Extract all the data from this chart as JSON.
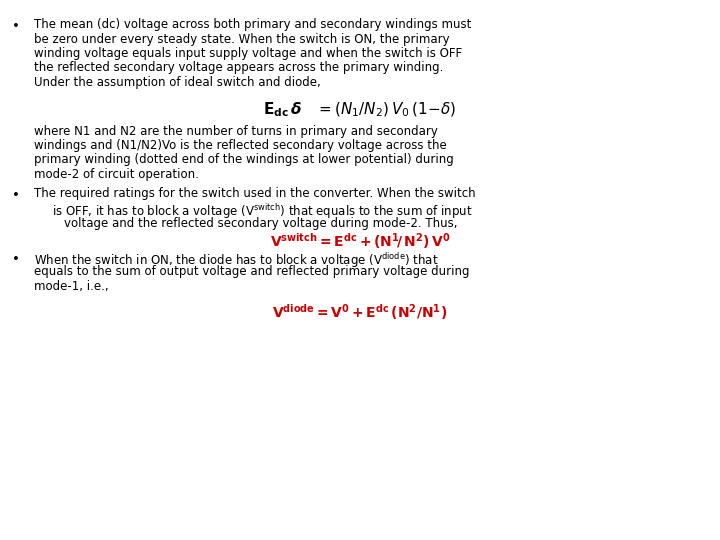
{
  "background_color": "#ffffff",
  "text_color": "#000000",
  "red_color": "#cc0000",
  "body_fontsize": 8.5,
  "formula1_fontsize": 11,
  "formula2_fontsize": 10,
  "bullet1_lines": [
    "The mean (dc) voltage across both primary and secondary windings must",
    "be zero under every steady state. When the switch is ON, the primary",
    "winding voltage equals input supply voltage and when the switch is OFF",
    "the reflected secondary voltage appears across the primary winding.",
    "Under the assumption of ideal switch and diode,"
  ],
  "after_formula1_lines": [
    "where N1 and N2 are the number of turns in primary and secondary",
    "windings and (N1/N2)Vo is the reflected secondary voltage across the",
    "primary winding (dotted end of the windings at lower potential) during",
    "mode-2 of circuit operation."
  ],
  "bullet2_line0": "The required ratings for the switch used in the converter. When the switch",
  "bullet2_line1": "is OFF, it has to block a voltage (V",
  "bullet2_line1b": "switch",
  "bullet2_line1c": ") that equals to the sum of input",
  "bullet2_line2": "voltage and the reflected secondary voltage during mode-2. Thus,",
  "bullet3_line0": "When the switch in ON, the diode has to block a voltage (V",
  "bullet3_line0b": "diode",
  "bullet3_line0c": ") that",
  "bullet3_line1": "equals to the sum of output voltage and reflected primary voltage during",
  "bullet3_line2": "mode-1, i.e.,"
}
